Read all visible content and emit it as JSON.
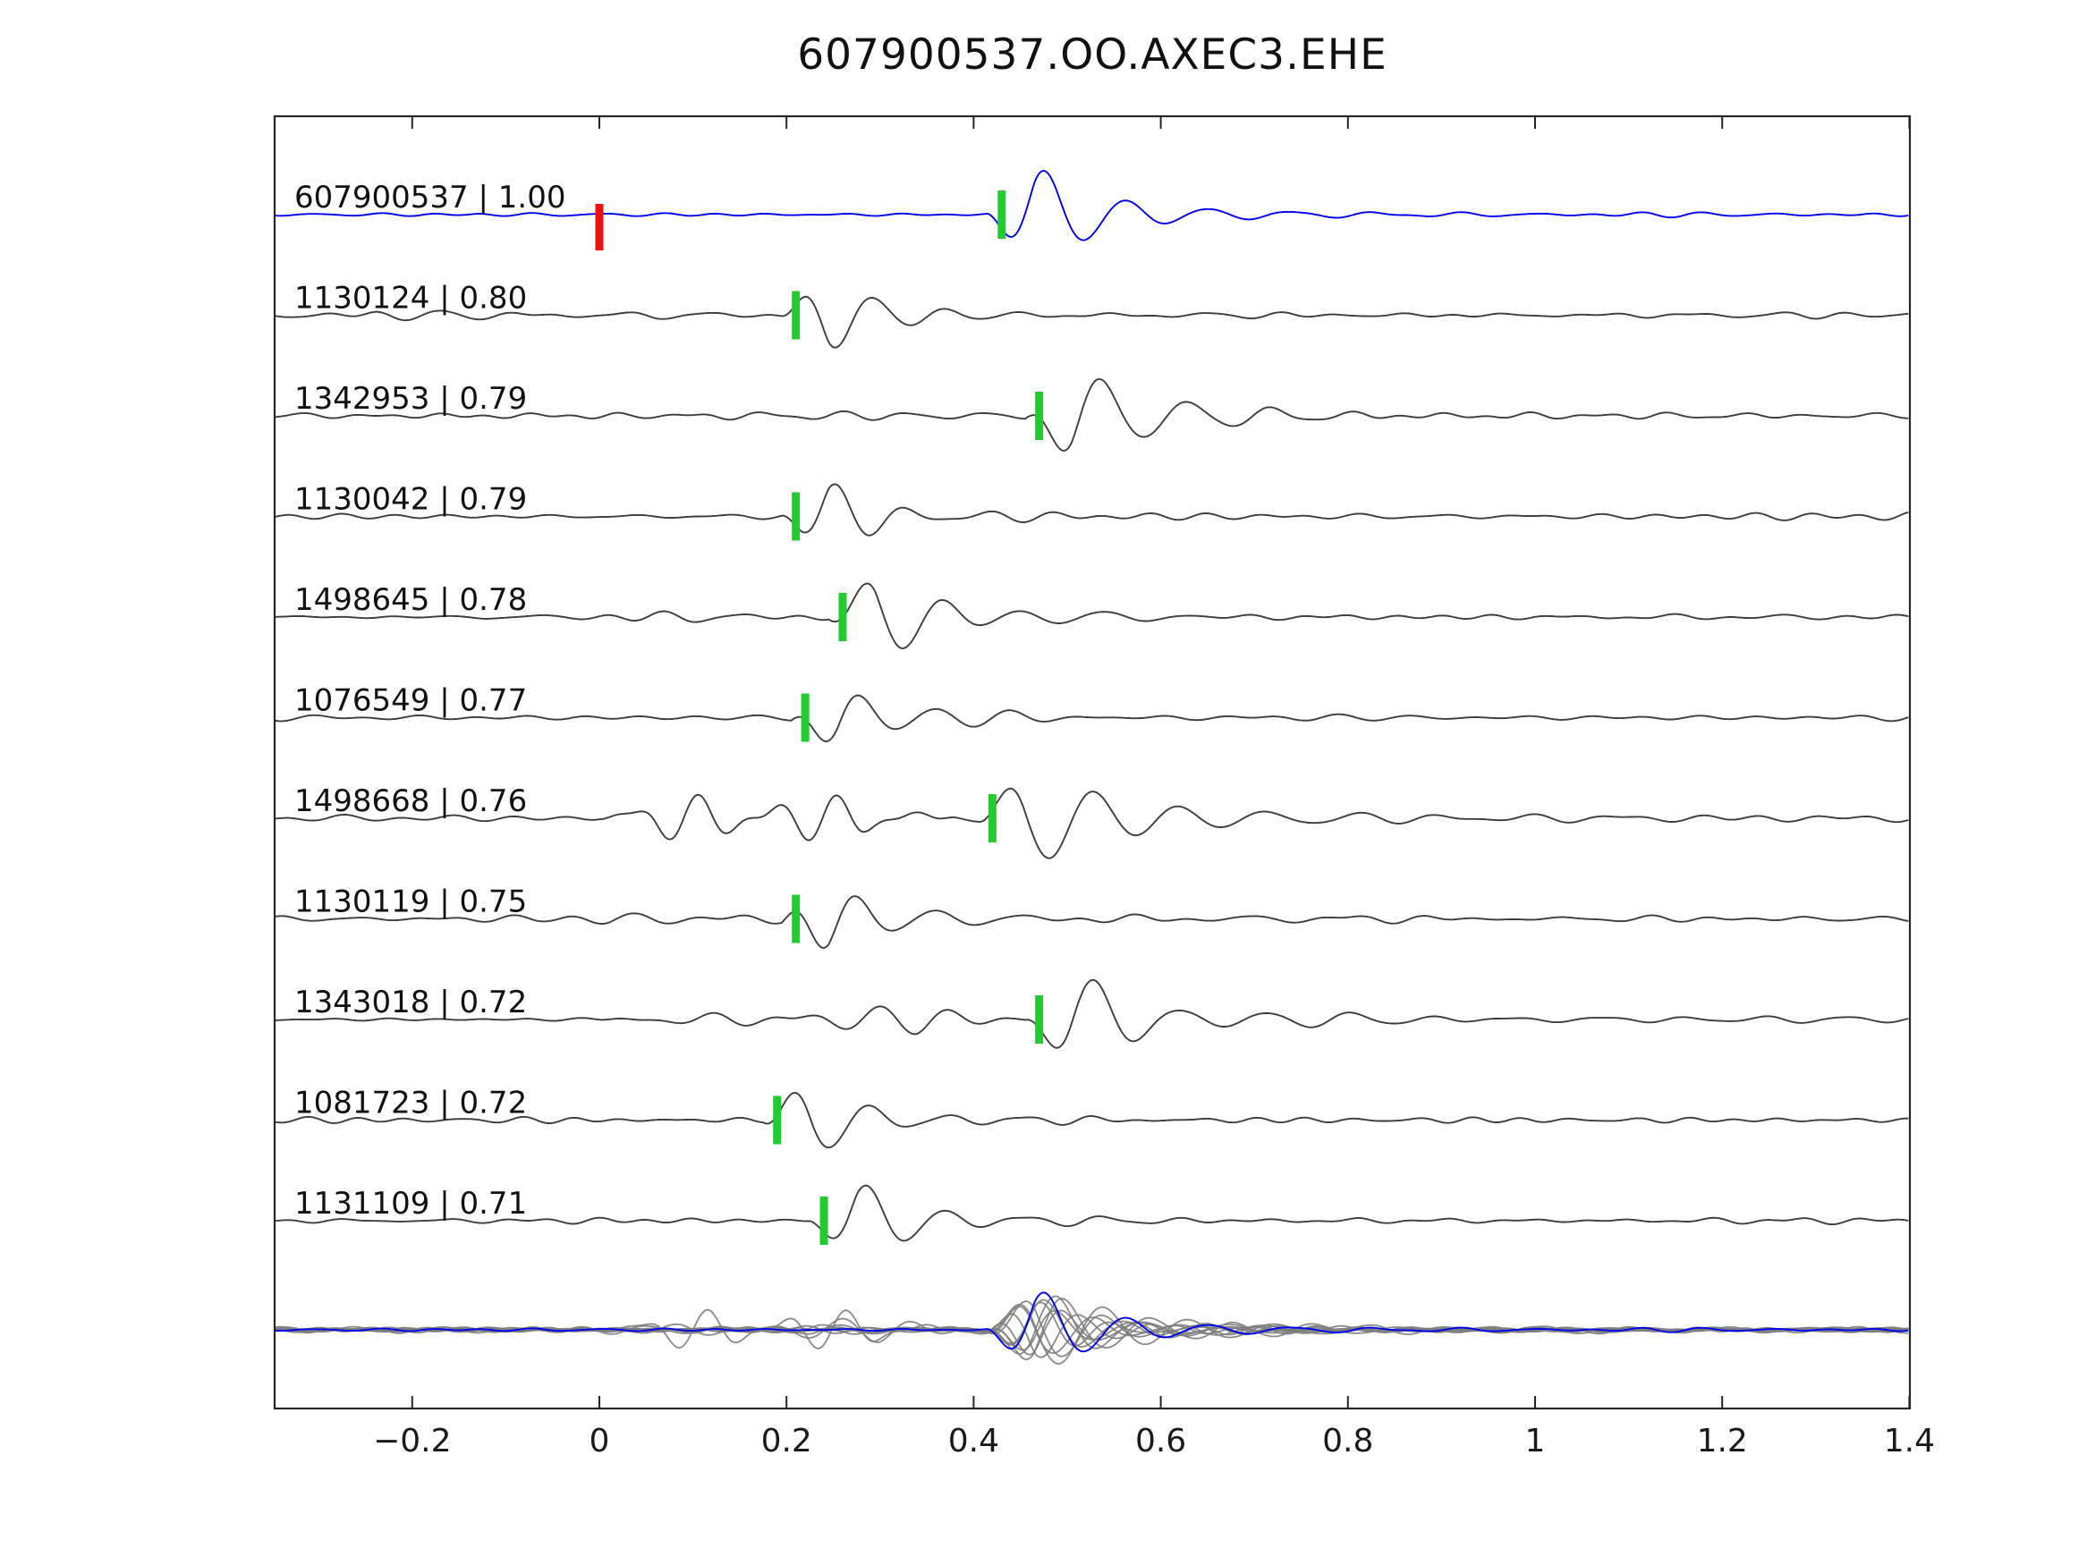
{
  "title": "607900537.OO.AXEC3.EHE",
  "chart_data": {
    "type": "line",
    "title": "607900537.OO.AXEC3.EHE",
    "subtitle": "",
    "xlabel": "",
    "ylabel": "",
    "xlim": [
      -0.35,
      1.4
    ],
    "grid": false,
    "legend_position": "none",
    "x_ticks": [
      {
        "value": -0.2,
        "label": "−0.2"
      },
      {
        "value": 0,
        "label": "0"
      },
      {
        "value": 0.2,
        "label": "0.2"
      },
      {
        "value": 0.4,
        "label": "0.4"
      },
      {
        "value": 0.6,
        "label": "0.6"
      },
      {
        "value": 0.8,
        "label": "0.8"
      },
      {
        "value": 1,
        "label": "1"
      },
      {
        "value": 1.2,
        "label": "1.2"
      },
      {
        "value": 1.4,
        "label": "1.4"
      }
    ],
    "colors": {
      "reference_trace": "#0000ee",
      "match_trace": "#3d3d3d",
      "pick_marker": "#21cc2e",
      "reference_marker": "#ee1111",
      "overlay_trace": "#7d7d7d",
      "axis": "#262626",
      "background": "#ffffff"
    },
    "traces": [
      {
        "label": "607900537 | 1.00",
        "event_id": "607900537",
        "similarity": 1.0,
        "pick_time": 0.43,
        "reference_marker_time": 0.0,
        "is_reference": true,
        "render": {
          "seed": 11,
          "noise_amp": 2.2,
          "event_amp": 62,
          "event_period": 0.088,
          "event_tau": 0.16,
          "coda_amp": 8,
          "burst": null
        }
      },
      {
        "label": "1130124 | 0.80",
        "event_id": "1130124",
        "similarity": 0.8,
        "pick_time": 0.21,
        "reference_marker_time": null,
        "is_reference": false,
        "render": {
          "seed": 22,
          "noise_amp": 4.0,
          "event_amp": 52,
          "event_period": 0.078,
          "event_tau": 0.12,
          "coda_amp": 9,
          "burst": {
            "start": -0.3,
            "end": 0.16,
            "amp": 5,
            "freq": 14
          }
        }
      },
      {
        "label": "1342953 | 0.79",
        "event_id": "1342953",
        "similarity": 0.79,
        "pick_time": 0.47,
        "reference_marker_time": null,
        "is_reference": false,
        "render": {
          "seed": 33,
          "noise_amp": 4.0,
          "event_amp": 54,
          "event_period": 0.09,
          "event_tau": 0.2,
          "coda_amp": 14,
          "burst": {
            "start": 0.03,
            "end": 0.4,
            "amp": 11,
            "freq": 17
          }
        }
      },
      {
        "label": "1130042 | 0.79",
        "event_id": "1130042",
        "similarity": 0.79,
        "pick_time": 0.21,
        "reference_marker_time": null,
        "is_reference": false,
        "render": {
          "seed": 44,
          "noise_amp": 4.2,
          "event_amp": 50,
          "event_period": 0.08,
          "event_tau": 0.13,
          "coda_amp": 9,
          "burst": null
        }
      },
      {
        "label": "1498645 | 0.78",
        "event_id": "1498645",
        "similarity": 0.78,
        "pick_time": 0.26,
        "reference_marker_time": null,
        "is_reference": false,
        "render": {
          "seed": 55,
          "noise_amp": 4.0,
          "event_amp": 52,
          "event_period": 0.085,
          "event_tau": 0.16,
          "coda_amp": 10,
          "burst": {
            "start": -0.12,
            "end": 0.2,
            "amp": 6,
            "freq": 13
          }
        }
      },
      {
        "label": "1076549 | 0.77",
        "event_id": "1076549",
        "similarity": 0.77,
        "pick_time": 0.22,
        "reference_marker_time": null,
        "is_reference": false,
        "render": {
          "seed": 66,
          "noise_amp": 4.0,
          "event_amp": 50,
          "event_period": 0.08,
          "event_tau": 0.12,
          "coda_amp": 9,
          "burst": null
        }
      },
      {
        "label": "1498668 | 0.76",
        "event_id": "1498668",
        "similarity": 0.76,
        "pick_time": 0.42,
        "reference_marker_time": null,
        "is_reference": false,
        "render": {
          "seed": 77,
          "noise_amp": 4.0,
          "event_amp": 56,
          "event_period": 0.095,
          "event_tau": 0.22,
          "coda_amp": 16,
          "burst": {
            "start": 0.0,
            "end": 0.38,
            "amp": 26,
            "freq": 17
          }
        }
      },
      {
        "label": "1130119 | 0.75",
        "event_id": "1130119",
        "similarity": 0.75,
        "pick_time": 0.21,
        "reference_marker_time": null,
        "is_reference": false,
        "render": {
          "seed": 88,
          "noise_amp": 4.5,
          "event_amp": 50,
          "event_period": 0.08,
          "event_tau": 0.12,
          "coda_amp": 9,
          "burst": {
            "start": -0.05,
            "end": 0.16,
            "amp": 7,
            "freq": 15
          }
        }
      },
      {
        "label": "1343018 | 0.72",
        "event_id": "1343018",
        "similarity": 0.72,
        "pick_time": 0.47,
        "reference_marker_time": null,
        "is_reference": false,
        "render": {
          "seed": 99,
          "noise_amp": 4.0,
          "event_amp": 52,
          "event_period": 0.09,
          "event_tau": 0.2,
          "coda_amp": 15,
          "burst": {
            "start": 0.0,
            "end": 0.44,
            "amp": 14,
            "freq": 15
          }
        }
      },
      {
        "label": "1081723 | 0.72",
        "event_id": "1081723",
        "similarity": 0.72,
        "pick_time": 0.19,
        "reference_marker_time": null,
        "is_reference": false,
        "render": {
          "seed": 110,
          "noise_amp": 4.0,
          "event_amp": 52,
          "event_period": 0.082,
          "event_tau": 0.12,
          "coda_amp": 9,
          "burst": null
        }
      },
      {
        "label": "1131109 | 0.71",
        "event_id": "1131109",
        "similarity": 0.71,
        "pick_time": 0.24,
        "reference_marker_time": null,
        "is_reference": false,
        "render": {
          "seed": 121,
          "noise_amp": 3.8,
          "event_amp": 50,
          "event_period": 0.085,
          "event_tau": 0.14,
          "coda_amp": 9,
          "burst": null
        }
      }
    ],
    "overlay": {
      "align_time": 0.43,
      "description": "All matched traces time-shifted to the reference pick and superimposed with the reference (blue) trace."
    }
  }
}
